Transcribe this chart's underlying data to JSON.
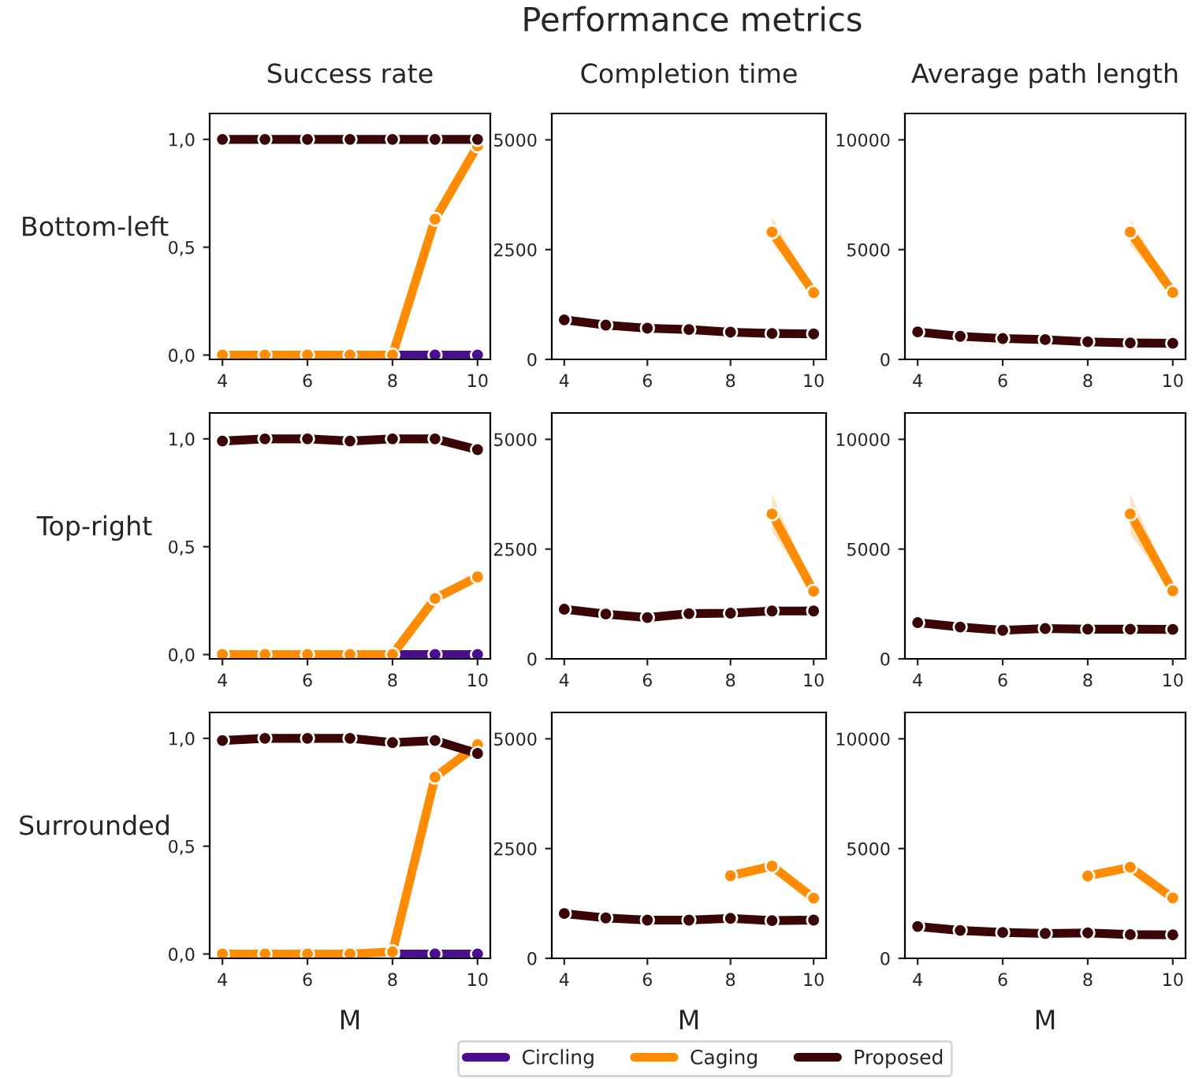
{
  "chart_data": [
    {
      "type": "line",
      "title": "Success rate",
      "ylabel": "Bottom-left",
      "annotations": [
        "Performance metrics"
      ],
      "x": [
        4,
        5,
        6,
        7,
        8,
        9,
        10
      ],
      "xlim": [
        3.7,
        10.3
      ],
      "xticks": [
        4,
        6,
        8,
        10
      ],
      "ylim": [
        -0.02,
        1.12
      ],
      "yticks": [
        {
          "value": 0,
          "label": "0,0"
        },
        {
          "value": 0.5,
          "label": "0,5"
        },
        {
          "value": 1,
          "label": "1,0"
        }
      ],
      "marker": "circle",
      "legend": "bottom",
      "grid": false,
      "series": [
        {
          "name": "Circling",
          "color": "#4a0e8f",
          "values": [
            null,
            null,
            null,
            null,
            0,
            0,
            0
          ]
        },
        {
          "name": "Caging",
          "color": "#ff8c00",
          "values": [
            0,
            0,
            0,
            0,
            0,
            0.63,
            0.97
          ]
        },
        {
          "name": "Proposed",
          "color": "#3b0505",
          "values": [
            1,
            1,
            1,
            1,
            1,
            1,
            1
          ]
        }
      ]
    },
    {
      "type": "line",
      "title": "Completion time",
      "x": [
        4,
        5,
        6,
        7,
        8,
        9,
        10
      ],
      "xlim": [
        3.7,
        10.3
      ],
      "xticks": [
        4,
        6,
        8,
        10
      ],
      "ylim": [
        0,
        5600
      ],
      "yticks": [
        0,
        2500,
        5000
      ],
      "marker": "circle",
      "grid": false,
      "series": [
        {
          "name": "Caging",
          "color": "#ff8c00",
          "values": [
            null,
            null,
            null,
            null,
            null,
            2900,
            1520
          ],
          "lower": [
            null,
            null,
            null,
            null,
            null,
            2650,
            1480
          ],
          "upper": [
            null,
            null,
            null,
            null,
            null,
            3250,
            1560
          ]
        },
        {
          "name": "Proposed",
          "color": "#3b0505",
          "values": [
            900,
            780,
            710,
            680,
            620,
            590,
            580
          ]
        }
      ]
    },
    {
      "type": "line",
      "title": "Average path length",
      "x": [
        4,
        5,
        6,
        7,
        8,
        9,
        10
      ],
      "xlim": [
        3.7,
        10.3
      ],
      "xticks": [
        4,
        6,
        8,
        10
      ],
      "ylim": [
        0,
        11200
      ],
      "yticks": [
        0,
        5000,
        10000
      ],
      "marker": "circle",
      "grid": false,
      "series": [
        {
          "name": "Caging",
          "color": "#ff8c00",
          "values": [
            null,
            null,
            null,
            null,
            null,
            5800,
            3050
          ],
          "lower": [
            null,
            null,
            null,
            null,
            null,
            5200,
            2950
          ],
          "upper": [
            null,
            null,
            null,
            null,
            null,
            6400,
            3150
          ]
        },
        {
          "name": "Proposed",
          "color": "#3b0505",
          "values": [
            1250,
            1050,
            950,
            900,
            800,
            750,
            730
          ]
        }
      ]
    },
    {
      "type": "line",
      "ylabel": "Top-right",
      "x": [
        4,
        5,
        6,
        7,
        8,
        9,
        10
      ],
      "xlim": [
        3.7,
        10.3
      ],
      "xticks": [
        4,
        6,
        8,
        10
      ],
      "ylim": [
        -0.02,
        1.12
      ],
      "yticks": [
        {
          "value": 0,
          "label": "0,0"
        },
        {
          "value": 0.5,
          "label": "0,5"
        },
        {
          "value": 1,
          "label": "1,0"
        }
      ],
      "marker": "circle",
      "grid": false,
      "series": [
        {
          "name": "Circling",
          "color": "#4a0e8f",
          "values": [
            null,
            null,
            null,
            null,
            0,
            0,
            0
          ]
        },
        {
          "name": "Caging",
          "color": "#ff8c00",
          "values": [
            0,
            0,
            0,
            0,
            0,
            0.26,
            0.36
          ]
        },
        {
          "name": "Proposed",
          "color": "#3b0505",
          "values": [
            0.99,
            1,
            1,
            0.99,
            1,
            1,
            0.95
          ]
        }
      ]
    },
    {
      "type": "line",
      "x": [
        4,
        5,
        6,
        7,
        8,
        9,
        10
      ],
      "xlim": [
        3.7,
        10.3
      ],
      "xticks": [
        4,
        6,
        8,
        10
      ],
      "ylim": [
        0,
        5600
      ],
      "yticks": [
        0,
        2500,
        5000
      ],
      "marker": "circle",
      "grid": false,
      "series": [
        {
          "name": "Caging",
          "color": "#ff8c00",
          "values": [
            null,
            null,
            null,
            null,
            null,
            3300,
            1540
          ],
          "lower": [
            null,
            null,
            null,
            null,
            null,
            2900,
            1480
          ],
          "upper": [
            null,
            null,
            null,
            null,
            null,
            3750,
            1600
          ]
        },
        {
          "name": "Proposed",
          "color": "#3b0505",
          "values": [
            1130,
            1020,
            940,
            1030,
            1040,
            1090,
            1090
          ]
        }
      ]
    },
    {
      "type": "line",
      "x": [
        4,
        5,
        6,
        7,
        8,
        9,
        10
      ],
      "xlim": [
        3.7,
        10.3
      ],
      "xticks": [
        4,
        6,
        8,
        10
      ],
      "ylim": [
        0,
        11200
      ],
      "yticks": [
        0,
        5000,
        10000
      ],
      "marker": "circle",
      "grid": false,
      "series": [
        {
          "name": "Caging",
          "color": "#ff8c00",
          "values": [
            null,
            null,
            null,
            null,
            null,
            6600,
            3100
          ],
          "lower": [
            null,
            null,
            null,
            null,
            null,
            5700,
            2950
          ],
          "upper": [
            null,
            null,
            null,
            null,
            null,
            7500,
            3250
          ]
        },
        {
          "name": "Proposed",
          "color": "#3b0505",
          "values": [
            1650,
            1450,
            1300,
            1380,
            1350,
            1350,
            1340
          ]
        }
      ]
    },
    {
      "type": "line",
      "ylabel": "Surrounded",
      "xlabel": "M",
      "x": [
        4,
        5,
        6,
        7,
        8,
        9,
        10
      ],
      "xlim": [
        3.7,
        10.3
      ],
      "xticks": [
        4,
        6,
        8,
        10
      ],
      "ylim": [
        -0.02,
        1.12
      ],
      "yticks": [
        {
          "value": 0,
          "label": "0,0"
        },
        {
          "value": 0.5,
          "label": "0,5"
        },
        {
          "value": 1,
          "label": "1,0"
        }
      ],
      "marker": "circle",
      "grid": false,
      "series": [
        {
          "name": "Circling",
          "color": "#4a0e8f",
          "values": [
            null,
            null,
            null,
            null,
            0,
            0,
            0
          ]
        },
        {
          "name": "Caging",
          "color": "#ff8c00",
          "values": [
            0,
            0,
            0,
            0,
            0.01,
            0.82,
            0.97
          ]
        },
        {
          "name": "Proposed",
          "color": "#3b0505",
          "values": [
            0.99,
            1,
            1,
            1,
            0.98,
            0.99,
            0.93
          ]
        }
      ]
    },
    {
      "type": "line",
      "xlabel": "M",
      "x": [
        4,
        5,
        6,
        7,
        8,
        9,
        10
      ],
      "xlim": [
        3.7,
        10.3
      ],
      "xticks": [
        4,
        6,
        8,
        10
      ],
      "ylim": [
        0,
        5600
      ],
      "yticks": [
        0,
        2500,
        5000
      ],
      "marker": "circle",
      "grid": false,
      "series": [
        {
          "name": "Caging",
          "color": "#ff8c00",
          "values": [
            null,
            null,
            null,
            null,
            1880,
            2100,
            1370
          ]
        },
        {
          "name": "Proposed",
          "color": "#3b0505",
          "values": [
            1020,
            920,
            870,
            870,
            910,
            860,
            870
          ]
        }
      ]
    },
    {
      "type": "line",
      "xlabel": "M",
      "x": [
        4,
        5,
        6,
        7,
        8,
        9,
        10
      ],
      "xlim": [
        3.7,
        10.3
      ],
      "xticks": [
        4,
        6,
        8,
        10
      ],
      "ylim": [
        0,
        11200
      ],
      "yticks": [
        0,
        5000,
        10000
      ],
      "marker": "circle",
      "grid": false,
      "series": [
        {
          "name": "Caging",
          "color": "#ff8c00",
          "values": [
            null,
            null,
            null,
            null,
            3750,
            4150,
            2750
          ]
        },
        {
          "name": "Proposed",
          "color": "#3b0505",
          "values": [
            1450,
            1270,
            1180,
            1130,
            1160,
            1080,
            1070
          ]
        }
      ]
    }
  ]
}
